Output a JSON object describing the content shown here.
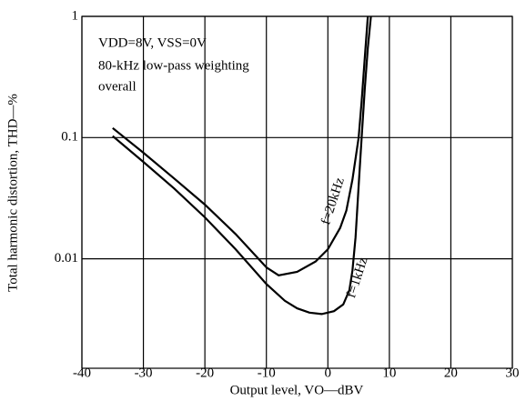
{
  "chart_data": {
    "type": "line",
    "annotations": [
      "VDD=8V, VSS=0V",
      "80-kHz low-pass weighting",
      "overall"
    ],
    "x_label": "Output level, VO—dBV",
    "y_label": "Total harmonic distortion, THD—%",
    "log_y": true,
    "grid": true,
    "xlim": [
      -40,
      30
    ],
    "xticks": [
      -40,
      -30,
      -20,
      -10,
      0,
      10,
      20,
      30
    ],
    "ylim": [
      0.00125,
      1
    ],
    "yticks": [
      0.01,
      0.1,
      1
    ],
    "series": [
      {
        "name": "f=20kHz",
        "color": "#000000",
        "x": [
          -35,
          -30,
          -25,
          -20,
          -15,
          -10,
          -8,
          -5,
          -2,
          0,
          2,
          3,
          4,
          5,
          5.5,
          6,
          6.5
        ],
        "values": [
          0.12,
          0.075,
          0.046,
          0.028,
          0.016,
          0.0085,
          0.0073,
          0.0078,
          0.0095,
          0.012,
          0.018,
          0.025,
          0.045,
          0.1,
          0.2,
          0.45,
          1
        ]
      },
      {
        "name": "f=1kHz",
        "color": "#000000",
        "x": [
          -35,
          -30,
          -25,
          -20,
          -15,
          -10,
          -7,
          -5,
          -3,
          -1,
          1,
          2.5,
          3.5,
          4,
          4.5,
          5,
          5.5,
          6,
          6.5,
          7
        ],
        "values": [
          0.103,
          0.063,
          0.038,
          0.022,
          0.012,
          0.0062,
          0.0045,
          0.0039,
          0.0036,
          0.0035,
          0.0037,
          0.0042,
          0.0055,
          0.008,
          0.015,
          0.04,
          0.1,
          0.25,
          0.55,
          1
        ]
      }
    ]
  }
}
